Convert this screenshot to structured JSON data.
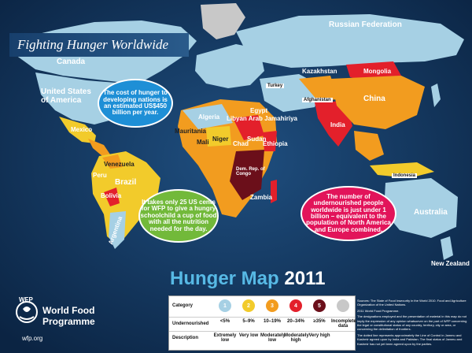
{
  "header": {
    "title": "Fighting Hunger Worldwide"
  },
  "map": {
    "labels": {
      "russian_federation": "Russian Federation",
      "canada": "Canada",
      "united_states": "United States of America",
      "mongolia": "Mongolia",
      "china": "China",
      "india": "India",
      "algeria": "Algeria",
      "sudan": "Sudan",
      "chad": "Chad",
      "ethiopia": "Ethiopia",
      "niger": "Niger",
      "mali": "Mali",
      "mauritania": "Mauritania",
      "libyan_arab": "Libyan Arab Jamahiriya",
      "egypt": "Egypt",
      "mexico": "Mexico",
      "brazil": "Brazil",
      "bolivia": "Bolivia",
      "argentina": "Argentina",
      "australia": "Australia",
      "new_zealand": "New Zealand",
      "dem_rep_congo": "Dem. Rep. of Congo",
      "indonesia": "Indonesia",
      "turkey": "Turkey",
      "kazakhstan": "Kazakhstan",
      "afghanistan": "Afghanistan",
      "pakistan": "Pakistan",
      "peru": "Peru",
      "venezuela": "Venezuela",
      "zambia": "Zambia"
    },
    "colors": {
      "ocean": "#0f2d52",
      "level1_less_than_5": "#a6d0e4",
      "level2_5_9": "#f2cb2b",
      "level3_10_19": "#f29c1f",
      "level4_20_34": "#e3202b",
      "level5_35_plus": "#6b0f1a",
      "no_data": "#c8c8c8"
    }
  },
  "callouts": {
    "cost": "The cost of hunger to developing nations is an estimated US$450 billion per year.",
    "school_meal": "It takes only 25 US cents for WFP to give a hungry schoolchild a cup of food with all the nutrition needed for the day.",
    "undernourished": "The number of undernourished people worldwide is just under 1 billion – equivalent to the population of North America and Europe combined."
  },
  "footer": {
    "hunger_map": "Hunger Map",
    "year": "2011",
    "wfp_abbrev": "WFP",
    "wfp_name_line1": "World Food",
    "wfp_name_line2": "Programme",
    "wfp_url": "wfp.org"
  },
  "legend": {
    "category_label": "Category",
    "undernourished_label": "Undernourished",
    "description_label": "Description",
    "categories": [
      {
        "num": "1",
        "range": "<5%",
        "desc": "Extremely low",
        "color": "#a6d0e4"
      },
      {
        "num": "2",
        "range": "5–9%",
        "desc": "Very low",
        "color": "#f2cb2b"
      },
      {
        "num": "3",
        "range": "10–19%",
        "desc": "Moderately low",
        "color": "#f29c1f"
      },
      {
        "num": "4",
        "range": "20–34%",
        "desc": "Moderately high",
        "color": "#e3202b"
      },
      {
        "num": "5",
        "range": "≥35%",
        "desc": "Very high",
        "color": "#6b0f1a"
      },
      {
        "num": "",
        "range": "Incomplete data",
        "desc": "",
        "color": "#c8c8c8"
      }
    ]
  },
  "notes": [
    "Sources: The State of Food Insecurity in the World 2010. Food and Agriculture Organization of the United Nations.",
    "2011 World Food Programme.",
    "The designations employed and the presentation of material in this map do not imply the expression of any opinion whatsoever on the part of WFP concerning the legal or constitutional status of any country, territory, city or area, or concerning the delimitation of frontiers.",
    "The dotted line represents approximately the Line of Control in Jammu and Kashmir agreed upon by India and Pakistan. The final status of Jammu and Kashmir has not yet been agreed upon by the parties."
  ]
}
